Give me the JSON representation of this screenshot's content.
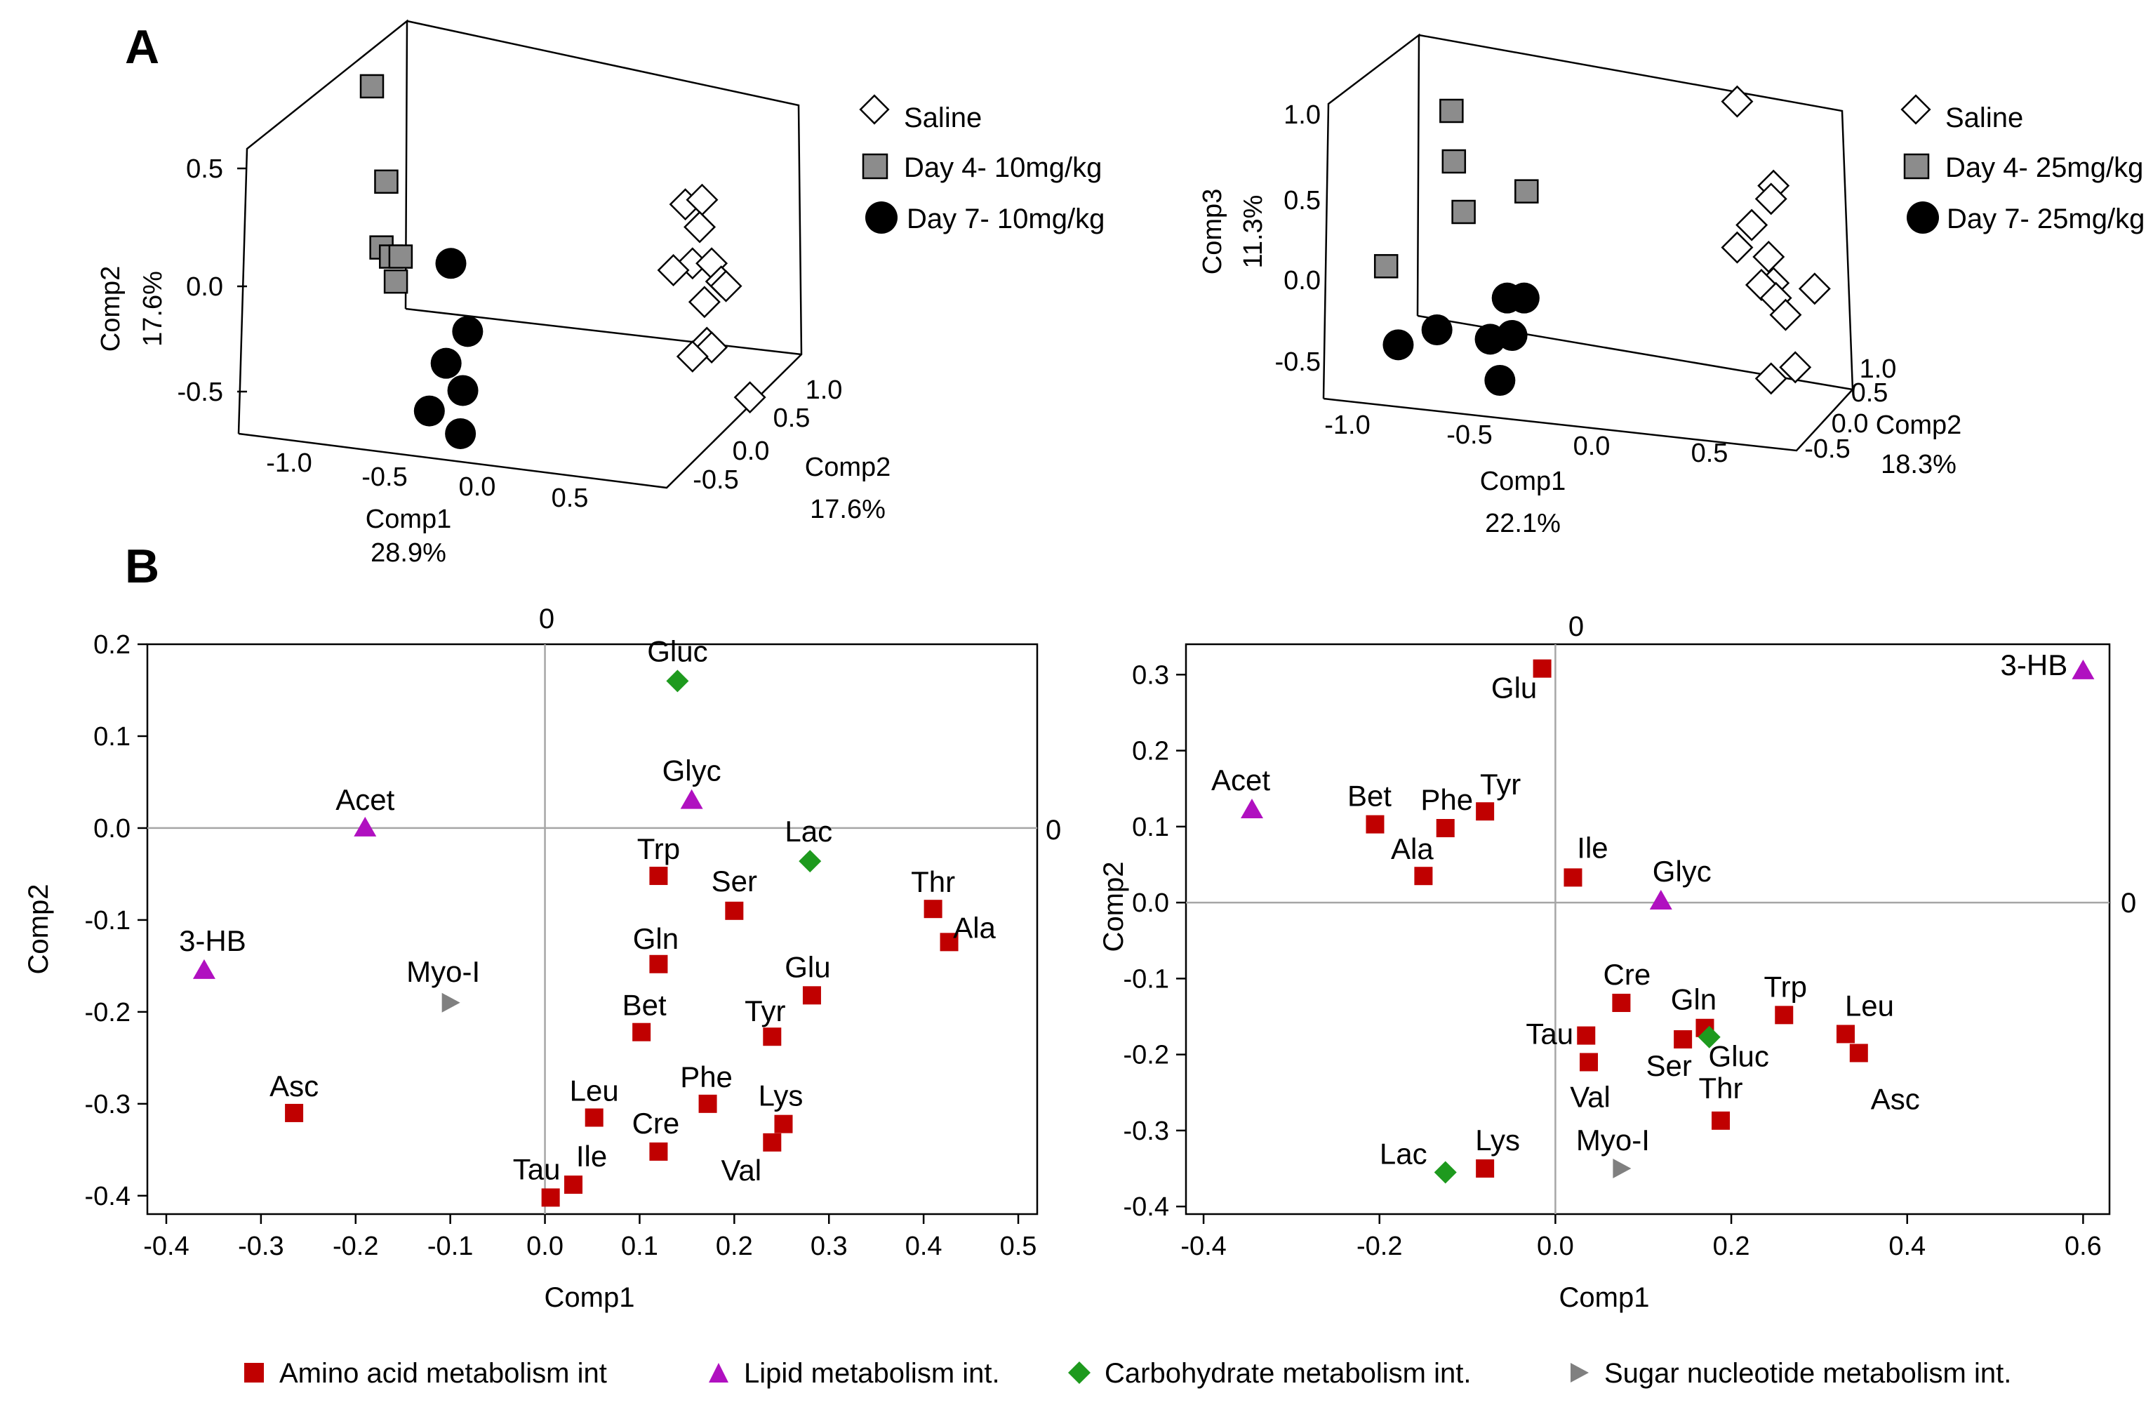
{
  "panel_labels": [
    "A",
    "B"
  ],
  "colors": {
    "amino": "#c00000",
    "lipid": "#b010c0",
    "carbo": "#1e9a1e",
    "sugar": "#808080",
    "grey_square": "#8c8c8c"
  },
  "chart_data": [
    {
      "type": "scatter",
      "panel": "A",
      "subtype": "3d-scatter",
      "axes": {
        "x": {
          "name": "Comp1",
          "pct": "28.9%",
          "ticks": [
            "-1.0",
            "-0.5",
            "0.0",
            "0.5"
          ]
        },
        "y": {
          "name": "Comp2",
          "pct": "17.6%",
          "ticks": [
            "0.5",
            "0.0",
            "-0.5"
          ]
        },
        "z": {
          "name": "Comp2",
          "pct": "17.6%",
          "ticks": [
            "1.0",
            "0.5",
            "0.0",
            "-0.5"
          ]
        }
      },
      "legend": [
        {
          "label": "Saline",
          "marker": "diamond-open"
        },
        {
          "label": "Day 4- 10mg/kg",
          "marker": "square-grey"
        },
        {
          "label": "Day 7- 10mg/kg",
          "marker": "circle-black"
        }
      ],
      "groups": [
        {
          "name": "Saline",
          "marker": "diamond-open",
          "points": [
            [
              0.55,
              0.44
            ],
            [
              0.62,
              0.46
            ],
            [
              0.61,
              0.34
            ],
            [
              0.58,
              0.18
            ],
            [
              0.66,
              0.18
            ],
            [
              0.5,
              0.15
            ],
            [
              0.7,
              0.1
            ],
            [
              0.72,
              0.08
            ],
            [
              0.63,
              0.01
            ],
            [
              0.64,
              -0.17
            ],
            [
              0.66,
              -0.19
            ],
            [
              0.58,
              -0.23
            ],
            [
              0.82,
              -0.41
            ]
          ]
        },
        {
          "name": "Day 4- 10mg/kg",
          "marker": "square-grey",
          "points": [
            [
              -0.76,
              0.96
            ],
            [
              -0.7,
              0.54
            ],
            [
              -0.72,
              0.25
            ],
            [
              -0.68,
              0.21
            ],
            [
              -0.64,
              0.21
            ],
            [
              -0.66,
              0.1
            ]
          ]
        },
        {
          "name": "Day 7- 10mg/kg",
          "marker": "circle-black",
          "points": [
            [
              -0.43,
              0.18
            ],
            [
              -0.36,
              -0.12
            ],
            [
              -0.45,
              -0.26
            ],
            [
              -0.38,
              -0.38
            ],
            [
              -0.52,
              -0.47
            ],
            [
              -0.39,
              -0.57
            ]
          ]
        }
      ]
    },
    {
      "type": "scatter",
      "panel": "A",
      "subtype": "3d-scatter",
      "axes": {
        "x": {
          "name": "Comp1",
          "pct": "22.1%",
          "ticks": [
            "-1.0",
            "-0.5",
            "0.0",
            "0.5"
          ]
        },
        "y": {
          "name": "Comp3",
          "pct": "11.3%",
          "ticks": [
            "1.0",
            "0.5",
            "0.0",
            "-0.5"
          ]
        },
        "z": {
          "name": "Comp2",
          "pct": "18.3%",
          "ticks": [
            "1.0",
            "0.5",
            "0.0",
            "-0.5"
          ]
        }
      },
      "legend": [
        {
          "label": "Saline",
          "marker": "diamond-open"
        },
        {
          "label": "Day 4- 25mg/kg",
          "marker": "square-grey"
        },
        {
          "label": "Day 7- 25mg/kg",
          "marker": "circle-black"
        }
      ],
      "groups": [
        {
          "name": "Saline",
          "marker": "diamond-open",
          "points": [
            [
              0.61,
              0.97
            ],
            [
              0.76,
              0.52
            ],
            [
              0.75,
              0.45
            ],
            [
              0.67,
              0.31
            ],
            [
              0.61,
              0.19
            ],
            [
              0.74,
              0.14
            ],
            [
              0.76,
              0.0
            ],
            [
              0.71,
              -0.01
            ],
            [
              0.93,
              -0.03
            ],
            [
              0.77,
              -0.08
            ],
            [
              0.81,
              -0.17
            ],
            [
              0.85,
              -0.45
            ],
            [
              0.75,
              -0.51
            ]
          ]
        },
        {
          "name": "Day 4- 25mg/kg",
          "marker": "square-grey",
          "points": [
            [
              -0.57,
              0.92
            ],
            [
              -0.56,
              0.65
            ],
            [
              -0.52,
              0.38
            ],
            [
              -0.26,
              0.49
            ],
            [
              -0.84,
              0.09
            ]
          ]
        },
        {
          "name": "Day 7- 25mg/kg",
          "marker": "circle-black",
          "points": [
            [
              -0.34,
              -0.08
            ],
            [
              -0.27,
              -0.08
            ],
            [
              -0.32,
              -0.28
            ],
            [
              -0.79,
              -0.33
            ],
            [
              -0.63,
              -0.25
            ],
            [
              -0.41,
              -0.3
            ],
            [
              -0.37,
              -0.52
            ]
          ]
        }
      ]
    },
    {
      "type": "scatter",
      "panel": "B",
      "title": "",
      "xlabel": "Comp1",
      "ylabel": "Comp2",
      "xlim": [
        -0.42,
        0.52
      ],
      "ylim": [
        -0.42,
        0.2
      ],
      "xticks": [
        "-0.4",
        "-0.3",
        "-0.2",
        "-0.1",
        "0.0",
        "0.1",
        "0.2",
        "0.3",
        "0.4",
        "0.5"
      ],
      "yticks": [
        "0.2",
        "0.1",
        "0.0",
        "-0.1",
        "-0.2",
        "-0.3",
        "-0.4"
      ],
      "zero_labels": [
        "0",
        "0"
      ],
      "points": [
        {
          "label": "Gluc",
          "cat": "carbo",
          "x": 0.14,
          "y": 0.16
        },
        {
          "label": "Glyc",
          "cat": "lipid",
          "x": 0.155,
          "y": 0.03
        },
        {
          "label": "Acet",
          "cat": "lipid",
          "x": -0.19,
          "y": 0.0
        },
        {
          "label": "Lac",
          "cat": "carbo",
          "x": 0.28,
          "y": -0.036
        },
        {
          "label": "Trp",
          "cat": "amino",
          "x": 0.12,
          "y": -0.052
        },
        {
          "label": "Ser",
          "cat": "amino",
          "x": 0.2,
          "y": -0.09
        },
        {
          "label": "Thr",
          "cat": "amino",
          "x": 0.41,
          "y": -0.088
        },
        {
          "label": "Ala",
          "cat": "amino",
          "x": 0.427,
          "y": -0.124
        },
        {
          "label": "3-HB",
          "cat": "lipid",
          "x": -0.36,
          "y": -0.155
        },
        {
          "label": "Myo-I",
          "cat": "sugar",
          "x": -0.1,
          "y": -0.19
        },
        {
          "label": "Gln",
          "cat": "amino",
          "x": 0.12,
          "y": -0.148
        },
        {
          "label": "Glu",
          "cat": "amino",
          "x": 0.282,
          "y": -0.182
        },
        {
          "label": "Bet",
          "cat": "amino",
          "x": 0.102,
          "y": -0.222
        },
        {
          "label": "Tyr",
          "cat": "amino",
          "x": 0.24,
          "y": -0.227
        },
        {
          "label": "Asc",
          "cat": "amino",
          "x": -0.265,
          "y": -0.31
        },
        {
          "label": "Phe",
          "cat": "amino",
          "x": 0.172,
          "y": -0.3
        },
        {
          "label": "Leu",
          "cat": "amino",
          "x": 0.052,
          "y": -0.315
        },
        {
          "label": "Lys",
          "cat": "amino",
          "x": 0.252,
          "y": -0.322
        },
        {
          "label": "Cre",
          "cat": "amino",
          "x": 0.12,
          "y": -0.352
        },
        {
          "label": "Val",
          "cat": "amino",
          "x": 0.24,
          "y": -0.342
        },
        {
          "label": "Ile",
          "cat": "amino",
          "x": 0.03,
          "y": -0.388
        },
        {
          "label": "Tau",
          "cat": "amino",
          "x": 0.006,
          "y": -0.402
        }
      ]
    },
    {
      "type": "scatter",
      "panel": "B",
      "title": "",
      "xlabel": "Comp1",
      "ylabel": "Comp2",
      "xlim": [
        -0.42,
        0.63
      ],
      "ylim": [
        -0.41,
        0.34
      ],
      "xticks": [
        "-0.4",
        "-0.2",
        "0.0",
        "0.2",
        "0.4",
        "0.6"
      ],
      "yticks": [
        "0.3",
        "0.2",
        "0.1",
        "0.0",
        "-0.1",
        "-0.2",
        "-0.3",
        "-0.4"
      ],
      "zero_labels": [
        "0",
        "0"
      ],
      "points": [
        {
          "label": "3-HB",
          "cat": "lipid",
          "x": 0.6,
          "y": 0.305
        },
        {
          "label": "Glu",
          "cat": "amino",
          "x": -0.015,
          "y": 0.308
        },
        {
          "label": "Acet",
          "cat": "lipid",
          "x": -0.345,
          "y": 0.122
        },
        {
          "label": "Bet",
          "cat": "amino",
          "x": -0.205,
          "y": 0.103
        },
        {
          "label": "Phe",
          "cat": "amino",
          "x": -0.125,
          "y": 0.098
        },
        {
          "label": "Tyr",
          "cat": "amino",
          "x": -0.08,
          "y": 0.12
        },
        {
          "label": "Ala",
          "cat": "amino",
          "x": -0.15,
          "y": 0.035
        },
        {
          "label": "Ile",
          "cat": "amino",
          "x": 0.02,
          "y": 0.033
        },
        {
          "label": "Glyc",
          "cat": "lipid",
          "x": 0.12,
          "y": 0.002
        },
        {
          "label": "Cre",
          "cat": "amino",
          "x": 0.075,
          "y": -0.132
        },
        {
          "label": "Trp",
          "cat": "amino",
          "x": 0.26,
          "y": -0.148
        },
        {
          "label": "Gln",
          "cat": "amino",
          "x": 0.17,
          "y": -0.165
        },
        {
          "label": "Leu",
          "cat": "amino",
          "x": 0.33,
          "y": -0.173
        },
        {
          "label": "Tau",
          "cat": "amino",
          "x": 0.035,
          "y": -0.175
        },
        {
          "label": "Ser",
          "cat": "amino",
          "x": 0.145,
          "y": -0.18
        },
        {
          "label": "Gluc",
          "cat": "carbo",
          "x": 0.175,
          "y": -0.177
        },
        {
          "label": "Asc",
          "cat": "amino",
          "x": 0.345,
          "y": -0.198
        },
        {
          "label": "Val",
          "cat": "amino",
          "x": 0.038,
          "y": -0.21
        },
        {
          "label": "Thr",
          "cat": "amino",
          "x": 0.188,
          "y": -0.287
        },
        {
          "label": "Lac",
          "cat": "carbo",
          "x": -0.125,
          "y": -0.355
        },
        {
          "label": "Lys",
          "cat": "amino",
          "x": -0.08,
          "y": -0.35
        },
        {
          "label": "Myo-I",
          "cat": "sugar",
          "x": 0.075,
          "y": -0.35
        }
      ]
    }
  ],
  "bottom_legend": [
    {
      "cat": "amino",
      "label": "Amino acid metabolism int"
    },
    {
      "cat": "lipid",
      "label": "Lipid metabolism int."
    },
    {
      "cat": "carbo",
      "label": "Carbohydrate metabolism int."
    },
    {
      "cat": "sugar",
      "label": "Sugar nucleotide metabolism int."
    }
  ]
}
